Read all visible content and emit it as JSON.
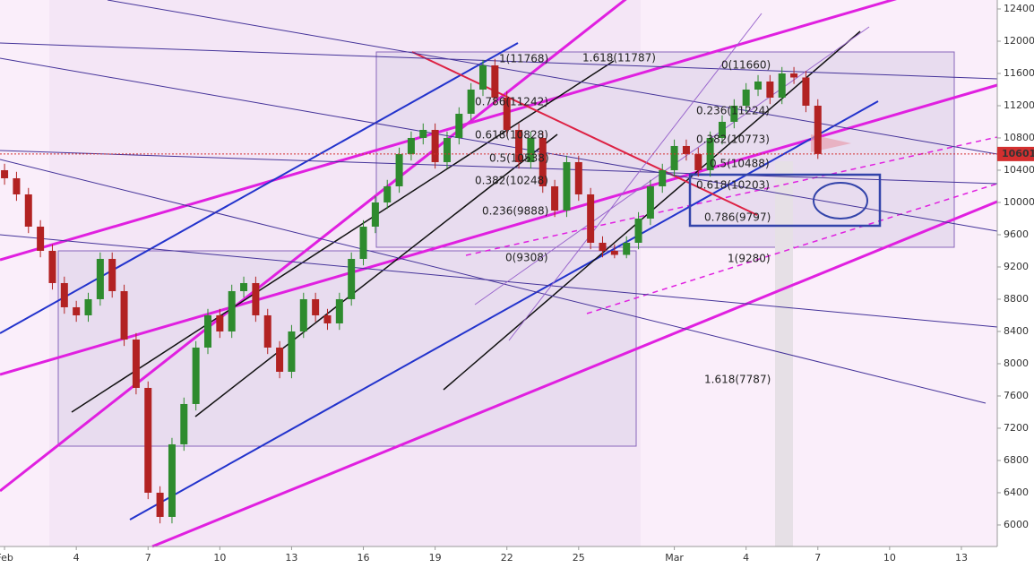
{
  "chart_data": {
    "type": "candlestick",
    "x": [
      0,
      0.5,
      1,
      1.5,
      2,
      2.5,
      3,
      3.5,
      4,
      4.5,
      5,
      5.5,
      6,
      6.5,
      7,
      7.5,
      8,
      8.5,
      9,
      9.5,
      10,
      10.5,
      11,
      11.5,
      12,
      12.5,
      13,
      13.5,
      14,
      14.5,
      15,
      15.5,
      16,
      16.5,
      17,
      17.5,
      18,
      18.5,
      19,
      19.5,
      20,
      20.5,
      21,
      21.5,
      22,
      22.5,
      23,
      23.5,
      24,
      24.5,
      25,
      25.5,
      26,
      26.5,
      27,
      27.5,
      28,
      28.5,
      29,
      29.5,
      30,
      30.5,
      31,
      31.5,
      32,
      32.5,
      33,
      33.5,
      34
    ],
    "open": [
      10400,
      10300,
      10100,
      9700,
      9400,
      9000,
      8700,
      8600,
      8800,
      9300,
      8900,
      8300,
      7700,
      6400,
      6100,
      7000,
      7500,
      8200,
      8600,
      8400,
      8900,
      9000,
      8600,
      8200,
      7900,
      8400,
      8800,
      8600,
      8500,
      8800,
      9300,
      9700,
      10000,
      10200,
      10600,
      10800,
      10900,
      10500,
      10800,
      11100,
      11400,
      11700,
      11300,
      10900,
      10500,
      10800,
      10200,
      9900,
      10500,
      10100,
      9500,
      9400,
      9350,
      9500,
      9800,
      10200,
      10400,
      10700,
      10600,
      10400,
      10800,
      11000,
      11200,
      11400,
      11500,
      11300,
      11600,
      11550,
      11200
    ],
    "high": [
      10480,
      10380,
      10180,
      9780,
      9480,
      9080,
      8780,
      8880,
      9380,
      9380,
      8980,
      8380,
      7780,
      6480,
      7080,
      7580,
      8280,
      8680,
      8680,
      8980,
      9080,
      9080,
      8680,
      8280,
      8480,
      8880,
      8880,
      8680,
      8880,
      9380,
      9780,
      10080,
      10280,
      10680,
      10880,
      10980,
      10980,
      10880,
      11180,
      11480,
      11768,
      11780,
      11380,
      10980,
      10880,
      10880,
      10280,
      10580,
      10580,
      10180,
      9580,
      9480,
      9580,
      9880,
      10280,
      10480,
      10780,
      10780,
      10680,
      10880,
      11080,
      11280,
      11480,
      11580,
      11580,
      11680,
      11680,
      11630,
      11280
    ],
    "low": [
      10220,
      10020,
      9620,
      9320,
      8920,
      8620,
      8520,
      8520,
      8720,
      8820,
      8220,
      7620,
      6320,
      6020,
      6020,
      6920,
      7420,
      8120,
      8320,
      8320,
      8820,
      8520,
      8120,
      7820,
      7820,
      8320,
      8520,
      8420,
      8420,
      8720,
      9220,
      9620,
      9920,
      10120,
      10520,
      10720,
      10420,
      10420,
      10720,
      11020,
      11320,
      11220,
      10820,
      10420,
      10420,
      10120,
      9820,
      9820,
      10020,
      9420,
      9320,
      9308,
      9308,
      9420,
      9720,
      10120,
      10320,
      10520,
      10320,
      10320,
      10720,
      10920,
      11120,
      11320,
      11220,
      11220,
      11470,
      11120,
      10540
    ],
    "close": [
      10300,
      10100,
      9700,
      9400,
      9000,
      8700,
      8600,
      8800,
      9300,
      8900,
      8300,
      7700,
      6400,
      6100,
      7000,
      7500,
      8200,
      8600,
      8400,
      8900,
      9000,
      8600,
      8200,
      7900,
      8400,
      8800,
      8600,
      8500,
      8800,
      9300,
      9700,
      10000,
      10200,
      10600,
      10800,
      10900,
      10500,
      10800,
      11100,
      11400,
      11700,
      11300,
      10900,
      10500,
      10800,
      10200,
      9900,
      10500,
      10100,
      9500,
      9400,
      9350,
      9500,
      9800,
      10200,
      10400,
      10700,
      10600,
      10400,
      10800,
      11000,
      11200,
      11400,
      11500,
      11300,
      11600,
      11550,
      11200,
      10601
    ],
    "up_color": "#2e8b2e",
    "down_color": "#b22222",
    "xlim": [
      -0.19,
      41.5
    ],
    "xticks": [
      {
        "value": 0,
        "label": "Feb"
      },
      3,
      6,
      9,
      12,
      15,
      18,
      21,
      24,
      {
        "value": 28,
        "label": "Mar"
      },
      31,
      34,
      37,
      40
    ],
    "xtick_labels": [
      "Feb",
      "4",
      "7",
      "10",
      "13",
      "16",
      "19",
      "22",
      "25",
      "Mar",
      "4",
      "7",
      "10",
      "13"
    ],
    "ylim": [
      5733,
      12511
    ],
    "yticks": [
      6000,
      6400,
      6800,
      7200,
      7600,
      8000,
      8400,
      8800,
      9200,
      9600,
      10000,
      10400,
      10800,
      11200,
      11600,
      12000,
      12400
    ],
    "last_price": 10601,
    "last_price_color": "#d32f2f",
    "annotations": [
      "1(11768)",
      "1.618(11787)",
      "0.786(11242)",
      "0.618(10828)",
      "0.5(10538)",
      "0.382(10248)",
      "0.236(9888)",
      "0(9308)",
      "0(11660)",
      "0.236(11224)",
      "0.382(10773)",
      "0.5(10488)",
      "0.618(10203)",
      "0.786(9797)",
      "1(9280)",
      "1.618(7787)"
    ]
  }
}
